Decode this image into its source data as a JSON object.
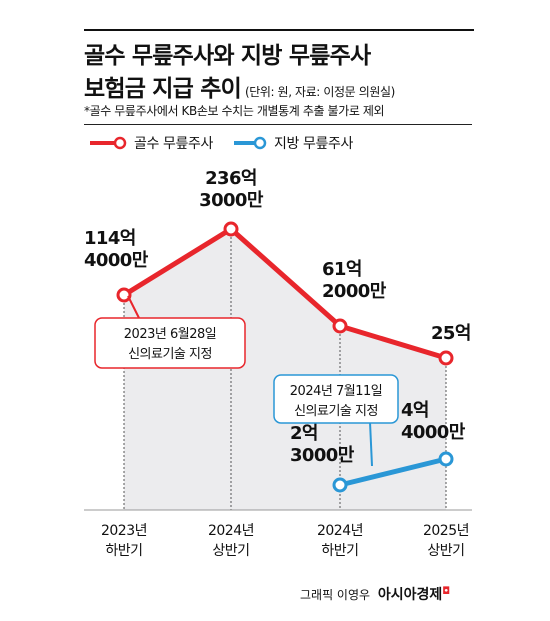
{
  "header": {
    "title_line1": "골수 무릎주사와 지방 무릎주사",
    "title_line2": "보험금 지급 추이",
    "unit_source": "(단위: 원, 자료: 이정문 의원실)",
    "note": "*골수 무릎주사에서 KB손보 수치는 개별통계 추출 불가로 제외"
  },
  "footer": {
    "credit": "그래픽 이영우",
    "brand": "아시아경제"
  },
  "colors": {
    "red": "#e8262c",
    "blue": "#2a97d6",
    "area": "#ececee",
    "grid": "#555555"
  },
  "chart_data": {
    "type": "line",
    "categories": [
      "2023년 하반기",
      "2024년 상반기",
      "2024년 하반기",
      "2025년 상반기"
    ],
    "category_lines": [
      [
        "2023년",
        "하반기"
      ],
      [
        "2024년",
        "상반기"
      ],
      [
        "2024년",
        "하반기"
      ],
      [
        "2025년",
        "상반기"
      ]
    ],
    "series": [
      {
        "name": "골수 무릎주사",
        "values": [
          11440000000,
          23630000000,
          6120000000,
          2500000000
        ],
        "labels": [
          [
            "114억",
            "4000만"
          ],
          [
            "236억",
            "3000만"
          ],
          [
            "61억",
            "2000만"
          ],
          [
            "25억"
          ]
        ],
        "color": "#e8262c"
      },
      {
        "name": "지방 무릎주사",
        "values": [
          null,
          null,
          230000000,
          440000000
        ],
        "labels": [
          null,
          null,
          [
            "2억",
            "3000만"
          ],
          [
            "4억",
            "4000만"
          ]
        ],
        "color": "#2a97d6"
      }
    ],
    "annotations": [
      {
        "lines": [
          "2023년 6월28일",
          "신의료기술 지정"
        ],
        "series": "골수 무릎주사"
      },
      {
        "lines": [
          "2024년 7월11일",
          "신의료기술 지정"
        ],
        "series": "지방 무릎주사"
      }
    ],
    "legend_position": "top-left",
    "grid": "dashed vertical lines at each category"
  }
}
